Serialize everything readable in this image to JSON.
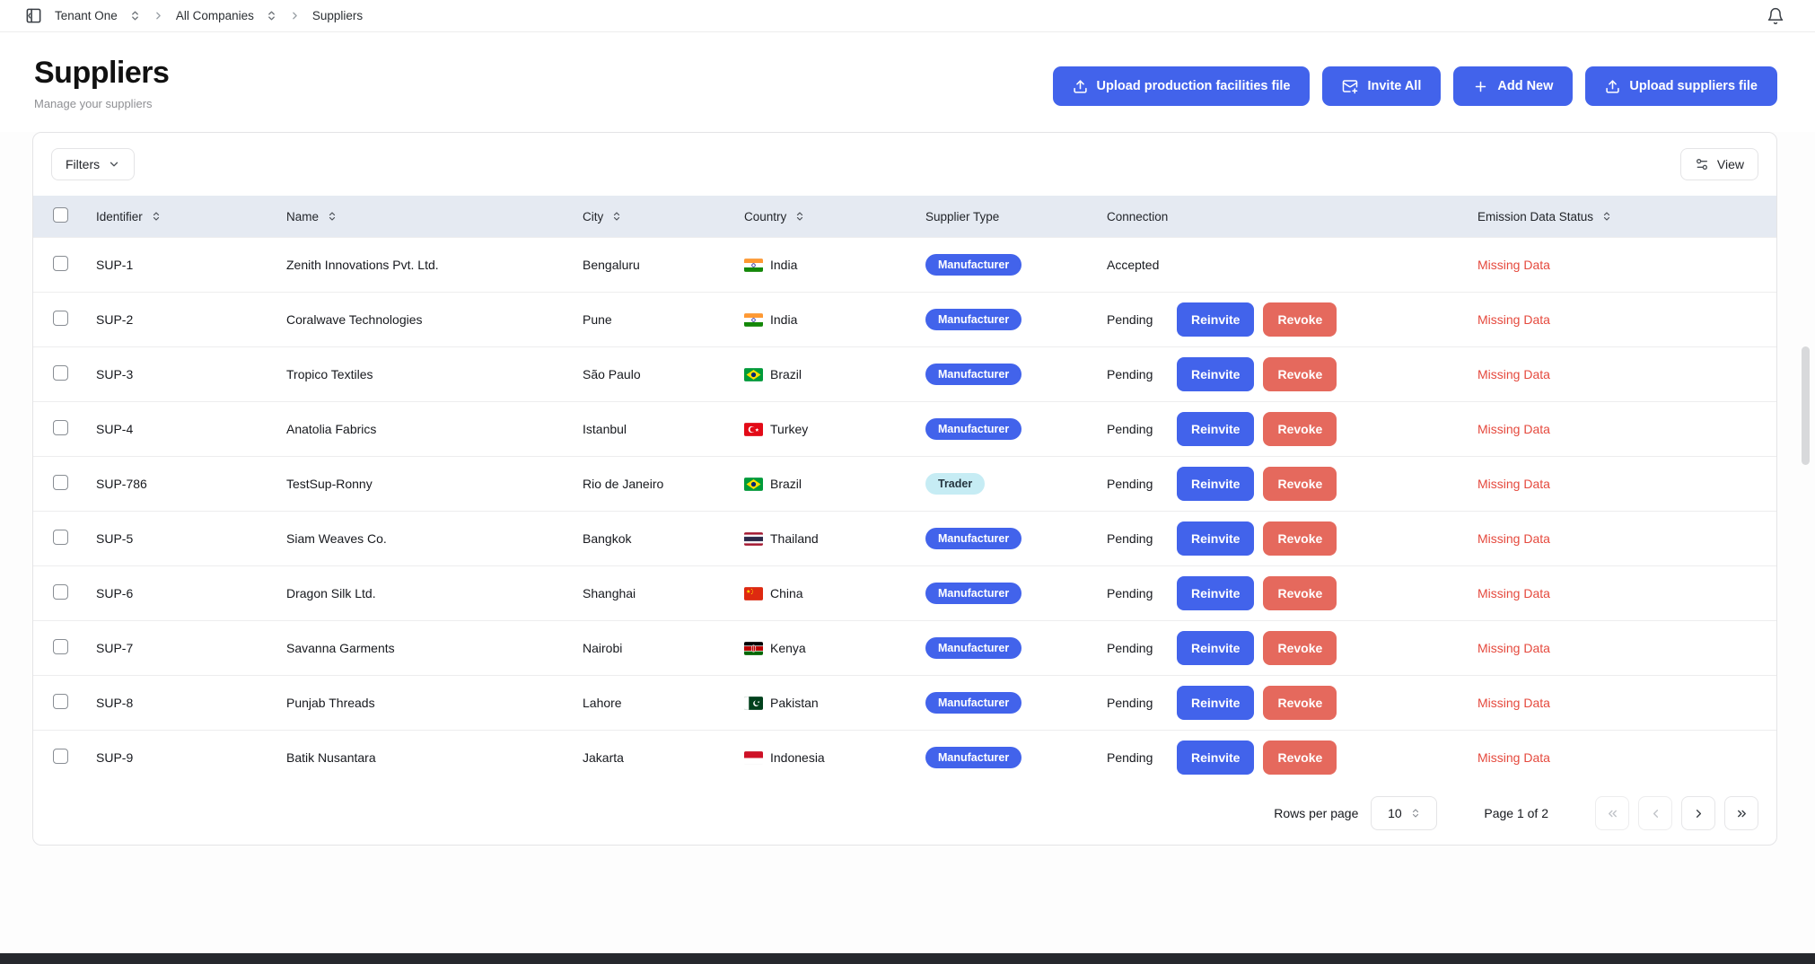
{
  "breadcrumb": {
    "items": [
      "Tenant One",
      "All Companies",
      "Suppliers"
    ]
  },
  "header": {
    "title": "Suppliers",
    "subtitle": "Manage your suppliers",
    "buttons": [
      {
        "label": "Upload production facilities file",
        "icon": "upload-icon"
      },
      {
        "label": "Invite All",
        "icon": "mail-plus-icon"
      },
      {
        "label": "Add New",
        "icon": "plus-icon"
      },
      {
        "label": "Upload suppliers file",
        "icon": "upload-icon"
      }
    ]
  },
  "toolbar": {
    "filters_label": "Filters",
    "view_label": "View"
  },
  "table": {
    "columns": [
      {
        "label": "Identifier",
        "sortable": true
      },
      {
        "label": "Name",
        "sortable": true
      },
      {
        "label": "City",
        "sortable": true
      },
      {
        "label": "Country",
        "sortable": true
      },
      {
        "label": "Supplier Type",
        "sortable": false
      },
      {
        "label": "Connection",
        "sortable": false
      },
      {
        "label": "Emission Data Status",
        "sortable": true
      }
    ],
    "rows": [
      {
        "identifier": "SUP-1",
        "name": "Zenith Innovations Pvt. Ltd.",
        "city": "Bengaluru",
        "country": "India",
        "flag": "in",
        "supplier_type": "Manufacturer",
        "connection": "Accepted",
        "actions": [],
        "emission_status": "Missing Data"
      },
      {
        "identifier": "SUP-2",
        "name": "Coralwave Technologies",
        "city": "Pune",
        "country": "India",
        "flag": "in",
        "supplier_type": "Manufacturer",
        "connection": "Pending",
        "actions": [
          "Reinvite",
          "Revoke"
        ],
        "emission_status": "Missing Data"
      },
      {
        "identifier": "SUP-3",
        "name": "Tropico Textiles",
        "city": "São Paulo",
        "country": "Brazil",
        "flag": "br",
        "supplier_type": "Manufacturer",
        "connection": "Pending",
        "actions": [
          "Reinvite",
          "Revoke"
        ],
        "emission_status": "Missing Data"
      },
      {
        "identifier": "SUP-4",
        "name": "Anatolia Fabrics",
        "city": "Istanbul",
        "country": "Turkey",
        "flag": "tr",
        "supplier_type": "Manufacturer",
        "connection": "Pending",
        "actions": [
          "Reinvite",
          "Revoke"
        ],
        "emission_status": "Missing Data"
      },
      {
        "identifier": "SUP-786",
        "name": "TestSup-Ronny",
        "city": "Rio de Janeiro",
        "country": "Brazil",
        "flag": "br",
        "supplier_type": "Trader",
        "connection": "Pending",
        "actions": [
          "Reinvite",
          "Revoke"
        ],
        "emission_status": "Missing Data"
      },
      {
        "identifier": "SUP-5",
        "name": "Siam Weaves Co.",
        "city": "Bangkok",
        "country": "Thailand",
        "flag": "th",
        "supplier_type": "Manufacturer",
        "connection": "Pending",
        "actions": [
          "Reinvite",
          "Revoke"
        ],
        "emission_status": "Missing Data"
      },
      {
        "identifier": "SUP-6",
        "name": "Dragon Silk Ltd.",
        "city": "Shanghai",
        "country": "China",
        "flag": "cn",
        "supplier_type": "Manufacturer",
        "connection": "Pending",
        "actions": [
          "Reinvite",
          "Revoke"
        ],
        "emission_status": "Missing Data"
      },
      {
        "identifier": "SUP-7",
        "name": "Savanna Garments",
        "city": "Nairobi",
        "country": "Kenya",
        "flag": "ke",
        "supplier_type": "Manufacturer",
        "connection": "Pending",
        "actions": [
          "Reinvite",
          "Revoke"
        ],
        "emission_status": "Missing Data"
      },
      {
        "identifier": "SUP-8",
        "name": "Punjab Threads",
        "city": "Lahore",
        "country": "Pakistan",
        "flag": "pk",
        "supplier_type": "Manufacturer",
        "connection": "Pending",
        "actions": [
          "Reinvite",
          "Revoke"
        ],
        "emission_status": "Missing Data"
      },
      {
        "identifier": "SUP-9",
        "name": "Batik Nusantara",
        "city": "Jakarta",
        "country": "Indonesia",
        "flag": "id",
        "supplier_type": "Manufacturer",
        "connection": "Pending",
        "actions": [
          "Reinvite",
          "Revoke"
        ],
        "emission_status": "Missing Data"
      }
    ]
  },
  "pagination": {
    "rows_per_page_label": "Rows per page",
    "rows_per_page_value": "10",
    "page_label": "Page 1 of 2"
  },
  "colors": {
    "primary_blue": "#4263eb",
    "revoke_red": "#e5695d",
    "missing_data_red": "#e5493d",
    "trader_badge_bg": "#c6ecf4",
    "table_header_bg": "#e5eaf2"
  }
}
